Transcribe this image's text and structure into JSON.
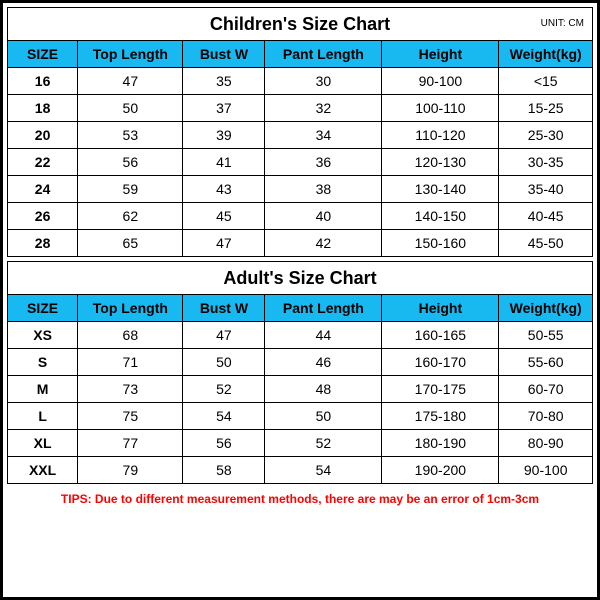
{
  "unit_label": "UNIT: CM",
  "header_bg": "#18b8f0",
  "columns": [
    "SIZE",
    "Top Length",
    "Bust W",
    "Pant Length",
    "Height",
    "Weight(kg)"
  ],
  "col_widths_pct": [
    12,
    18,
    14,
    20,
    20,
    16
  ],
  "children": {
    "title": "Children's Size Chart",
    "rows": [
      [
        "16",
        "47",
        "35",
        "30",
        "90-100",
        "<15"
      ],
      [
        "18",
        "50",
        "37",
        "32",
        "100-110",
        "15-25"
      ],
      [
        "20",
        "53",
        "39",
        "34",
        "110-120",
        "25-30"
      ],
      [
        "22",
        "56",
        "41",
        "36",
        "120-130",
        "30-35"
      ],
      [
        "24",
        "59",
        "43",
        "38",
        "130-140",
        "35-40"
      ],
      [
        "26",
        "62",
        "45",
        "40",
        "140-150",
        "40-45"
      ],
      [
        "28",
        "65",
        "47",
        "42",
        "150-160",
        "45-50"
      ]
    ]
  },
  "adult": {
    "title": "Adult's Size Chart",
    "rows": [
      [
        "XS",
        "68",
        "47",
        "44",
        "160-165",
        "50-55"
      ],
      [
        "S",
        "71",
        "50",
        "46",
        "160-170",
        "55-60"
      ],
      [
        "M",
        "73",
        "52",
        "48",
        "170-175",
        "60-70"
      ],
      [
        "L",
        "75",
        "54",
        "50",
        "175-180",
        "70-80"
      ],
      [
        "XL",
        "77",
        "56",
        "52",
        "180-190",
        "80-90"
      ],
      [
        "XXL",
        "79",
        "58",
        "54",
        "190-200",
        "90-100"
      ]
    ]
  },
  "tips": "TIPS: Due to different measurement methods, there are may be an error of 1cm-3cm"
}
